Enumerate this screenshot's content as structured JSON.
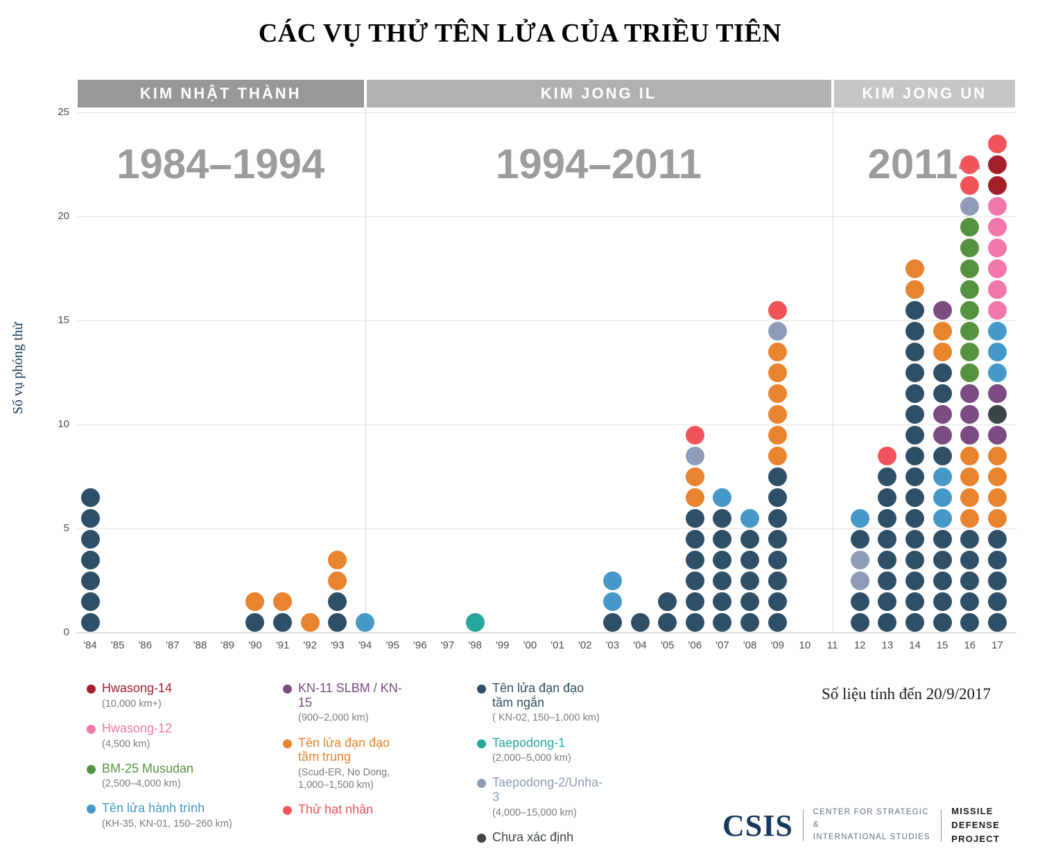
{
  "title": "CÁC VỤ THỬ TÊN LỬA CỦA TRIỀU TIÊN",
  "note": "Số liệu tính đến 20/9/2017",
  "footer": {
    "logo": "CSIS",
    "org_line1": "CENTER FOR STRATEGIC &",
    "org_line2": "INTERNATIONAL STUDIES",
    "project_line1": "MISSILE DEFENSE",
    "project_line2": "PROJECT"
  },
  "colors": {
    "hwasong14": "#a31f2c",
    "hwasong12": "#f078ab",
    "musudan": "#55913f",
    "cruise": "#4698c9",
    "kn11": "#7c4b82",
    "mrbm": "#e8832e",
    "nuclear": "#f0545a",
    "srbm": "#2e4f66",
    "taepodong1": "#27a69e",
    "taepodong2": "#8e9cb7",
    "unknown": "#3c4448"
  },
  "legend": {
    "columns": [
      [
        {
          "label": "Hwasong-14",
          "color_key": "hwasong14",
          "sub": "(10,000 km+)"
        },
        {
          "label": "Hwasong-12",
          "color_key": "hwasong12",
          "sub": "(4,500 km)"
        },
        {
          "label": "BM-25 Musudan",
          "color_key": "musudan",
          "sub": "(2,500–4,000 km)"
        },
        {
          "label": "Tên lửa hành trình",
          "color_key": "cruise",
          "sub": "(KH-35, KN-01, 150–260 km)"
        }
      ],
      [
        {
          "label": "KN-11 SLBM / KN-15",
          "color_key": "kn11",
          "sub": "(900–2,000 km)"
        },
        {
          "label": "Tên lửa đạn đạo tầm trung",
          "color_key": "mrbm",
          "sub": "(Scud-ER, No Dong, 1,000–1,500 km)"
        },
        {
          "label": "Thử hạt nhân",
          "color_key": "nuclear",
          "sub": ""
        }
      ],
      [
        {
          "label": "Tên lửa đạn đạo tầm ngắn",
          "color_key": "srbm",
          "sub": "( KN-02, 150–1,000 km)"
        },
        {
          "label": "Taepodong-1",
          "color_key": "taepodong1",
          "sub": "(2,000–5,000 km)"
        },
        {
          "label": "Taepodong-2/Unha-3",
          "color_key": "taepodong2",
          "sub": "(4,000–15,000 km)"
        },
        {
          "label": "Chưa xác định",
          "color_key": "unknown",
          "sub": ""
        }
      ]
    ]
  },
  "chart_data": {
    "type": "stacked-dot-column",
    "title": "CÁC VỤ THỬ TÊN LỬA CỦA TRIỀU TIÊN",
    "ylabel": "Số vụ phóng thử",
    "ylim": [
      0,
      25
    ],
    "yticks": [
      0,
      5,
      10,
      15,
      20,
      25
    ],
    "dot_unit": "1 dot = 1 launch/test",
    "eras": [
      {
        "name": "KIM NHẬT THÀNH",
        "range_label": "1984–1994",
        "start_year": 1984,
        "end_year": 1994,
        "band_color": "#989898"
      },
      {
        "name": "KIM JONG IL",
        "range_label": "1994–2011",
        "start_year": 1994,
        "end_year": 2011,
        "band_color": "#b1b1b1"
      },
      {
        "name": "KIM JONG UN",
        "range_label": "2011–",
        "start_year": 2011,
        "end_year": null,
        "band_color": "#c6c6c6"
      }
    ],
    "columns": [
      {
        "label": "'84",
        "year": 1984,
        "dots": [
          "srbm",
          "srbm",
          "srbm",
          "srbm",
          "srbm",
          "srbm",
          "srbm"
        ]
      },
      {
        "label": "'85",
        "year": 1985,
        "dots": []
      },
      {
        "label": "'86",
        "year": 1986,
        "dots": []
      },
      {
        "label": "'87",
        "year": 1987,
        "dots": []
      },
      {
        "label": "'88",
        "year": 1988,
        "dots": []
      },
      {
        "label": "'89",
        "year": 1989,
        "dots": []
      },
      {
        "label": "'90",
        "year": 1990,
        "dots": [
          "srbm",
          "mrbm"
        ]
      },
      {
        "label": "'91",
        "year": 1991,
        "dots": [
          "srbm",
          "mrbm"
        ]
      },
      {
        "label": "'92",
        "year": 1992,
        "dots": [
          "mrbm"
        ]
      },
      {
        "label": "'93",
        "year": 1993,
        "dots": [
          "srbm",
          "srbm",
          "mrbm",
          "mrbm"
        ]
      },
      {
        "label": "'94",
        "year": 1994,
        "dots": [
          "cruise"
        ]
      },
      {
        "label": "'95",
        "year": 1995,
        "dots": []
      },
      {
        "label": "'96",
        "year": 1996,
        "dots": []
      },
      {
        "label": "'97",
        "year": 1997,
        "dots": []
      },
      {
        "label": "'98",
        "year": 1998,
        "dots": [
          "taepodong1"
        ]
      },
      {
        "label": "'99",
        "year": 1999,
        "dots": []
      },
      {
        "label": "'00",
        "year": 2000,
        "dots": []
      },
      {
        "label": "'01",
        "year": 2001,
        "dots": []
      },
      {
        "label": "'02",
        "year": 2002,
        "dots": []
      },
      {
        "label": "'03",
        "year": 2003,
        "dots": [
          "srbm",
          "cruise",
          "cruise"
        ]
      },
      {
        "label": "'04",
        "year": 2004,
        "dots": [
          "srbm"
        ]
      },
      {
        "label": "'05",
        "year": 2005,
        "dots": [
          "srbm",
          "srbm"
        ]
      },
      {
        "label": "'06",
        "year": 2006,
        "dots": [
          "srbm",
          "srbm",
          "srbm",
          "srbm",
          "srbm",
          "srbm",
          "mrbm",
          "mrbm",
          "taepodong2",
          "nuclear"
        ]
      },
      {
        "label": "'07",
        "year": 2007,
        "dots": [
          "srbm",
          "srbm",
          "srbm",
          "srbm",
          "srbm",
          "srbm",
          "cruise"
        ]
      },
      {
        "label": "'08",
        "year": 2008,
        "dots": [
          "srbm",
          "srbm",
          "srbm",
          "srbm",
          "srbm",
          "cruise"
        ]
      },
      {
        "label": "'09",
        "year": 2009,
        "dots": [
          "srbm",
          "srbm",
          "srbm",
          "srbm",
          "srbm",
          "srbm",
          "srbm",
          "srbm",
          "mrbm",
          "mrbm",
          "mrbm",
          "mrbm",
          "mrbm",
          "mrbm",
          "taepodong2",
          "nuclear"
        ]
      },
      {
        "label": "10",
        "year": 2010,
        "dots": []
      },
      {
        "label": "11",
        "year": 2011,
        "dots": []
      },
      {
        "label": "12",
        "year": 2012,
        "dots": [
          "srbm",
          "srbm",
          "taepodong2",
          "taepodong2",
          "srbm",
          "cruise"
        ]
      },
      {
        "label": "13",
        "year": 2013,
        "dots": [
          "srbm",
          "srbm",
          "srbm",
          "srbm",
          "srbm",
          "srbm",
          "srbm",
          "srbm",
          "nuclear"
        ]
      },
      {
        "label": "14",
        "year": 2014,
        "dots": [
          "srbm",
          "srbm",
          "srbm",
          "srbm",
          "srbm",
          "srbm",
          "srbm",
          "srbm",
          "srbm",
          "srbm",
          "srbm",
          "srbm",
          "srbm",
          "srbm",
          "srbm",
          "srbm",
          "mrbm",
          "mrbm"
        ]
      },
      {
        "label": "15",
        "year": 2015,
        "dots": [
          "srbm",
          "srbm",
          "srbm",
          "srbm",
          "srbm",
          "cruise",
          "cruise",
          "cruise",
          "srbm",
          "kn11",
          "kn11",
          "srbm",
          "srbm",
          "mrbm",
          "mrbm",
          "kn11"
        ]
      },
      {
        "label": "16",
        "year": 2016,
        "dots": [
          "srbm",
          "srbm",
          "srbm",
          "srbm",
          "srbm",
          "mrbm",
          "mrbm",
          "mrbm",
          "mrbm",
          "kn11",
          "kn11",
          "kn11",
          "musudan",
          "musudan",
          "musudan",
          "musudan",
          "musudan",
          "musudan",
          "musudan",
          "musudan",
          "taepodong2",
          "nuclear",
          "nuclear"
        ]
      },
      {
        "label": "17",
        "year": 2017,
        "dots": [
          "srbm",
          "srbm",
          "srbm",
          "srbm",
          "srbm",
          "mrbm",
          "mrbm",
          "mrbm",
          "mrbm",
          "kn11",
          "unknown",
          "kn11",
          "cruise",
          "cruise",
          "cruise",
          "hwasong12",
          "hwasong12",
          "hwasong12",
          "hwasong12",
          "hwasong12",
          "hwasong12",
          "hwasong14",
          "hwasong14",
          "nuclear"
        ]
      }
    ]
  }
}
